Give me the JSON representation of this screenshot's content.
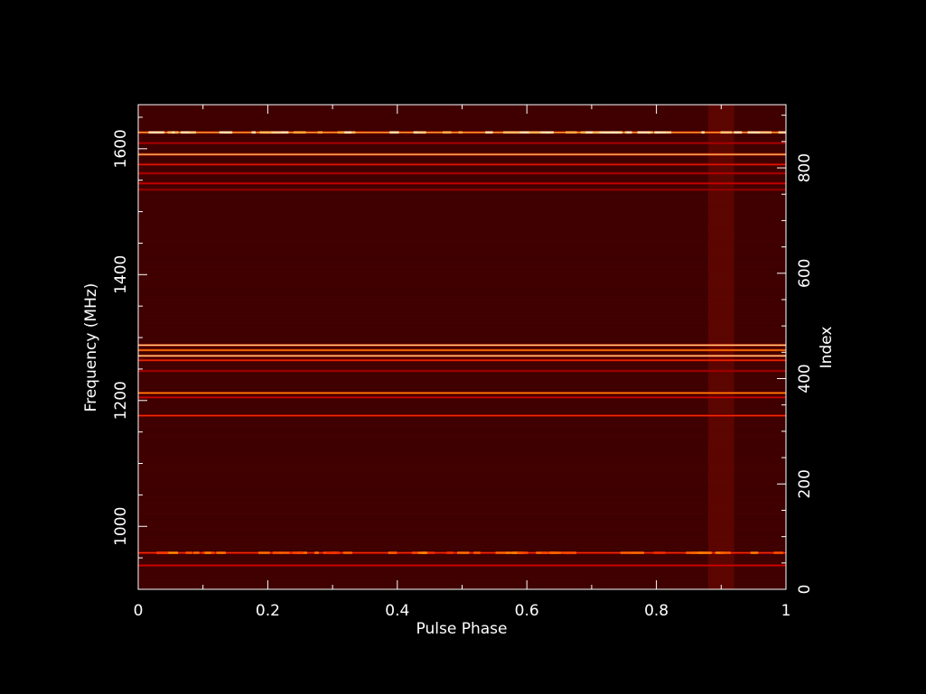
{
  "chart_data": {
    "type": "heatmap",
    "title": "",
    "xlabel": "Pulse Phase",
    "ylabel": "Frequency (MHz)",
    "y2label": "Index",
    "xlim": [
      0,
      1
    ],
    "ylim": [
      900,
      1670
    ],
    "y2lim": [
      0,
      920
    ],
    "x_ticks": [
      "0",
      "0.2",
      "0.4",
      "0.6",
      "0.8",
      "1"
    ],
    "y_ticks": [
      "1000",
      "1200",
      "1400",
      "1600"
    ],
    "y2_ticks": [
      "0",
      "200",
      "400",
      "600",
      "800"
    ],
    "colormap": [
      "#3a0000",
      "#8b0000",
      "#ff3000",
      "#ffb000",
      "#ffffff"
    ],
    "background_color": "#3d0000",
    "bright_frequency_bands_mhz": [
      {
        "freq": 1626,
        "intensity": 0.85,
        "structured": true
      },
      {
        "freq": 1609,
        "intensity": 0.35
      },
      {
        "freq": 1591,
        "intensity": 0.9
      },
      {
        "freq": 1575,
        "intensity": 0.5
      },
      {
        "freq": 1561,
        "intensity": 0.4
      },
      {
        "freq": 1545,
        "intensity": 0.45
      },
      {
        "freq": 1535,
        "intensity": 0.3
      },
      {
        "freq": 1288,
        "intensity": 0.95
      },
      {
        "freq": 1280,
        "intensity": 0.8
      },
      {
        "freq": 1271,
        "intensity": 0.95
      },
      {
        "freq": 1264,
        "intensity": 0.55
      },
      {
        "freq": 1247,
        "intensity": 0.35
      },
      {
        "freq": 1212,
        "intensity": 0.8
      },
      {
        "freq": 1205,
        "intensity": 0.45
      },
      {
        "freq": 1176,
        "intensity": 0.55
      },
      {
        "freq": 958,
        "intensity": 0.55,
        "structured": true
      },
      {
        "freq": 938,
        "intensity": 0.45
      }
    ],
    "bright_phase_column": {
      "phase_start": 0.88,
      "phase_end": 0.92,
      "intensity": 0.3
    },
    "grid": false,
    "legend": "none"
  }
}
